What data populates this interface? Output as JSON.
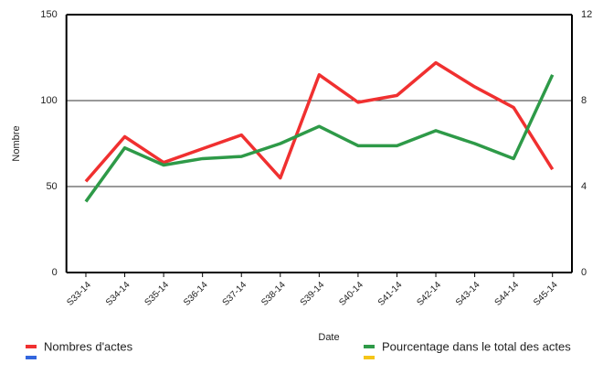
{
  "chart_data": {
    "type": "line",
    "x_label": "Date",
    "y_label": "Nombre",
    "categories": [
      "S33-14",
      "S34-14",
      "S35-14",
      "S36-14",
      "S37-14",
      "S38-14",
      "S39-14",
      "S40-14",
      "S41-14",
      "S42-14",
      "S43-14",
      "S44-14",
      "S45-14"
    ],
    "series": [
      {
        "name": "Nombres d'actes",
        "color": "#f03030",
        "values": [
          53,
          79,
          64,
          72,
          80,
          55,
          115,
          99,
          103,
          122,
          108,
          96,
          60
        ]
      },
      {
        "name": "Pourcentage dans le total des actes",
        "color": "#2e9a48",
        "axis": "y2",
        "values": [
          3.3,
          5.8,
          5.0,
          5.3,
          5.4,
          6.0,
          6.8,
          5.9,
          5.9,
          6.6,
          6.0,
          5.3,
          9.2
        ]
      }
    ],
    "ylim": [
      0,
      150
    ],
    "yticks": [
      0,
      50,
      100,
      150
    ],
    "y2lim": [
      0,
      12
    ],
    "y2ticks": [
      0,
      4,
      8,
      12
    ],
    "grid": true
  }
}
